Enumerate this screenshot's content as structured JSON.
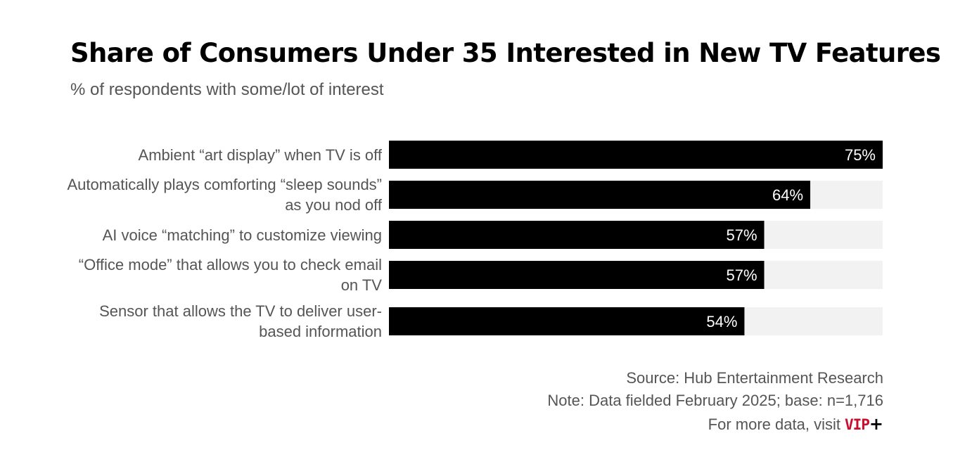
{
  "chart_data": {
    "type": "bar",
    "orientation": "horizontal",
    "title": "Share of Consumers Under 35 Interested in New TV Features",
    "subtitle": "% of respondents with some/lot of interest",
    "categories": [
      "Ambient “art display” when TV is off",
      "Automatically plays comforting “sleep sounds” as you nod off",
      "AI voice “matching” to customize viewing",
      "“Office mode” that allows you to check email on TV",
      "Sensor that allows the TV to deliver user-based information"
    ],
    "values": [
      75,
      64,
      57,
      57,
      54
    ],
    "data_labels": [
      "75%",
      "64%",
      "57%",
      "57%",
      "54%"
    ],
    "xlim": [
      0,
      75
    ],
    "grid": false,
    "legend": "none",
    "bar_color": "#000000",
    "track_color": "#f2f2f2",
    "label_color": "#ffffff"
  },
  "footer": {
    "source": "Source: Hub Entertainment Research",
    "note": "Note: Data fielded February 2025; base: n=1,716",
    "more_data": "For more data, visit",
    "brand": "VIP",
    "brand_plus": "+"
  },
  "colors": {
    "brand": "#c8102e",
    "text_secondary": "#555555"
  }
}
